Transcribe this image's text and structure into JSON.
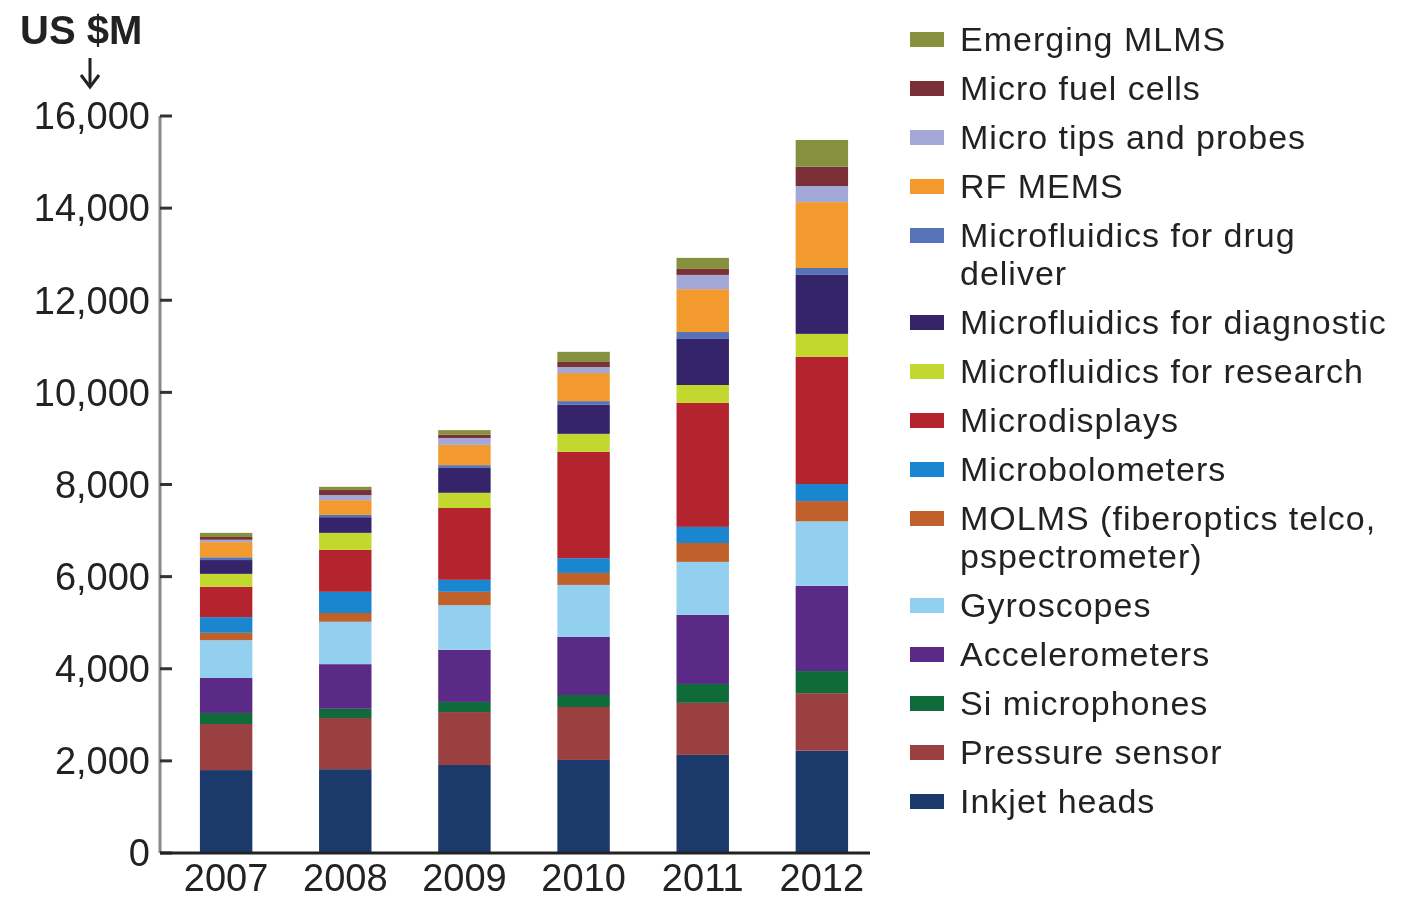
{
  "chart_data": {
    "type": "bar",
    "stacked": true,
    "ylabel": "US $M",
    "categories": [
      "2007",
      "2008",
      "2009",
      "2010",
      "2011",
      "2012"
    ],
    "ylim": [
      0,
      16000
    ],
    "yticks": [
      0,
      {
        "value": 2000,
        "label": "2,000"
      },
      {
        "value": 4000,
        "label": "4,000"
      },
      {
        "value": 6000,
        "label": "6,000"
      },
      {
        "value": 8000,
        "label": "8,000"
      },
      {
        "value": 10000,
        "label": "10,000"
      },
      {
        "value": 12000,
        "label": "12,000"
      },
      {
        "value": 14000,
        "label": "14,000"
      },
      {
        "value": 16000,
        "label": "16,000"
      }
    ],
    "grid": false,
    "legend": "right",
    "series": [
      {
        "name": "Inkjet heads",
        "color": "#1b3a6b",
        "values": [
          1800,
          1820,
          1910,
          2020,
          2130,
          2220
        ]
      },
      {
        "name": "Pressure sensor",
        "color": "#9a4040",
        "values": [
          1000,
          1110,
          1150,
          1150,
          1130,
          1250
        ]
      },
      {
        "name": "Si microphones",
        "color": "#0f6b3a",
        "values": [
          240,
          200,
          220,
          260,
          410,
          480
        ]
      },
      {
        "name": "Accelerometers",
        "color": "#5b2a86",
        "values": [
          760,
          970,
          1130,
          1260,
          1500,
          1850
        ]
      },
      {
        "name": "Gyroscopes",
        "color": "#93d0f0",
        "values": [
          820,
          920,
          970,
          1130,
          1150,
          1400
        ]
      },
      {
        "name": "MOLMS (fiberoptics telco, pspectrometer)",
        "color": "#c0602a",
        "values": [
          160,
          190,
          290,
          260,
          410,
          440
        ]
      },
      {
        "name": "Microbolometers",
        "color": "#1a86cf",
        "values": [
          340,
          460,
          260,
          320,
          350,
          370
        ]
      },
      {
        "name": "Microdisplays",
        "color": "#b3242f",
        "values": [
          660,
          910,
          1560,
          2310,
          2690,
          2760
        ]
      },
      {
        "name": "Microfluidics for research",
        "color": "#c3d82f",
        "values": [
          280,
          370,
          330,
          390,
          390,
          500
        ]
      },
      {
        "name": "Microfluidics for diagnostic",
        "color": "#35246a",
        "values": [
          300,
          340,
          540,
          630,
          1000,
          1280
        ]
      },
      {
        "name": "Microfluidics for drug deliver",
        "color": "#5672b8",
        "values": [
          60,
          50,
          60,
          80,
          150,
          150
        ]
      },
      {
        "name": "RF MEMS",
        "color": "#f29a2e",
        "values": [
          330,
          320,
          440,
          610,
          930,
          1430
        ]
      },
      {
        "name": "Micro tips and probes",
        "color": "#a3a8d8",
        "values": [
          50,
          110,
          150,
          130,
          310,
          350
        ]
      },
      {
        "name": "Micro fuel cells",
        "color": "#7a3036",
        "values": [
          60,
          110,
          70,
          110,
          130,
          420
        ]
      },
      {
        "name": "Emerging MLMS",
        "color": "#85913f",
        "values": [
          90,
          70,
          100,
          220,
          240,
          580
        ]
      }
    ]
  }
}
